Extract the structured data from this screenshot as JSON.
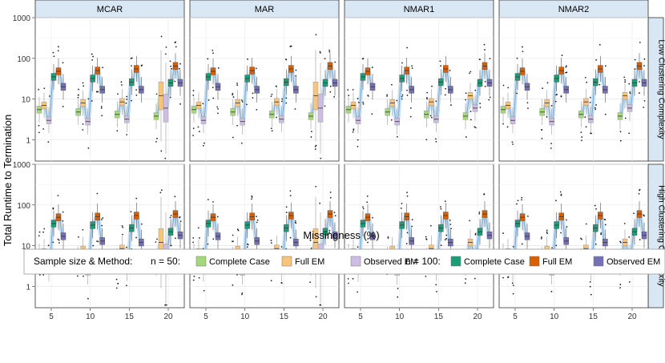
{
  "chart_data": {
    "type": "box",
    "title": "",
    "ylabel": "Total Runtime to Termination",
    "xlabel": "Missingness (%)",
    "y_scale": "log10",
    "ylim": [
      0.3,
      1000
    ],
    "y_ticks": [
      1,
      10,
      100,
      1000
    ],
    "y_tick_labels": [
      "1",
      "10",
      "100",
      "1000"
    ],
    "x_categories": [
      "5",
      "10",
      "15",
      "20"
    ],
    "col_facets": [
      "MCAR",
      "MAR",
      "NMAR1",
      "NMAR2"
    ],
    "row_facets": [
      "Low Clustering Complexity",
      "High Clustering Complexity"
    ],
    "legend_title": "Sample size & Method:",
    "legend_groups": [
      {
        "label": "n = 50:",
        "items": [
          {
            "name": "Complete Case",
            "color": "#a3d97a"
          },
          {
            "name": "Full EM",
            "color": "#f7c47e"
          },
          {
            "name": "Observed EM",
            "color": "#cdbde3"
          }
        ]
      },
      {
        "label": "n = 100:",
        "items": [
          {
            "name": "Complete Case",
            "color": "#1b9e77"
          },
          {
            "name": "Full EM",
            "color": "#d95f02"
          },
          {
            "name": "Observed EM",
            "color": "#7570b3"
          }
        ]
      }
    ],
    "medians_low": {
      "n50_complete_case": [
        5.5,
        4.8,
        4.2,
        3.8
      ],
      "n50_full_em": [
        7.0,
        8.0,
        8.5,
        12.0
      ],
      "n50_observed_em": [
        3.0,
        2.8,
        3.2,
        6.0
      ],
      "n100_complete_case": [
        35,
        32,
        26,
        25
      ],
      "n100_full_em": [
        48,
        50,
        55,
        65
      ],
      "n100_observed_em": [
        20,
        17,
        17,
        25
      ]
    },
    "medians_high": {
      "n50_complete_case": [
        5.5,
        4.5,
        4.2,
        3.8
      ],
      "n50_full_em": [
        7.0,
        8.0,
        8.5,
        12.0
      ],
      "n50_observed_em": [
        2.7,
        2.3,
        2.8,
        5.0
      ],
      "n100_complete_case": [
        35,
        32,
        27,
        22
      ],
      "n100_full_em": [
        50,
        52,
        55,
        60
      ],
      "n100_observed_em": [
        17,
        13,
        12,
        18
      ]
    }
  }
}
